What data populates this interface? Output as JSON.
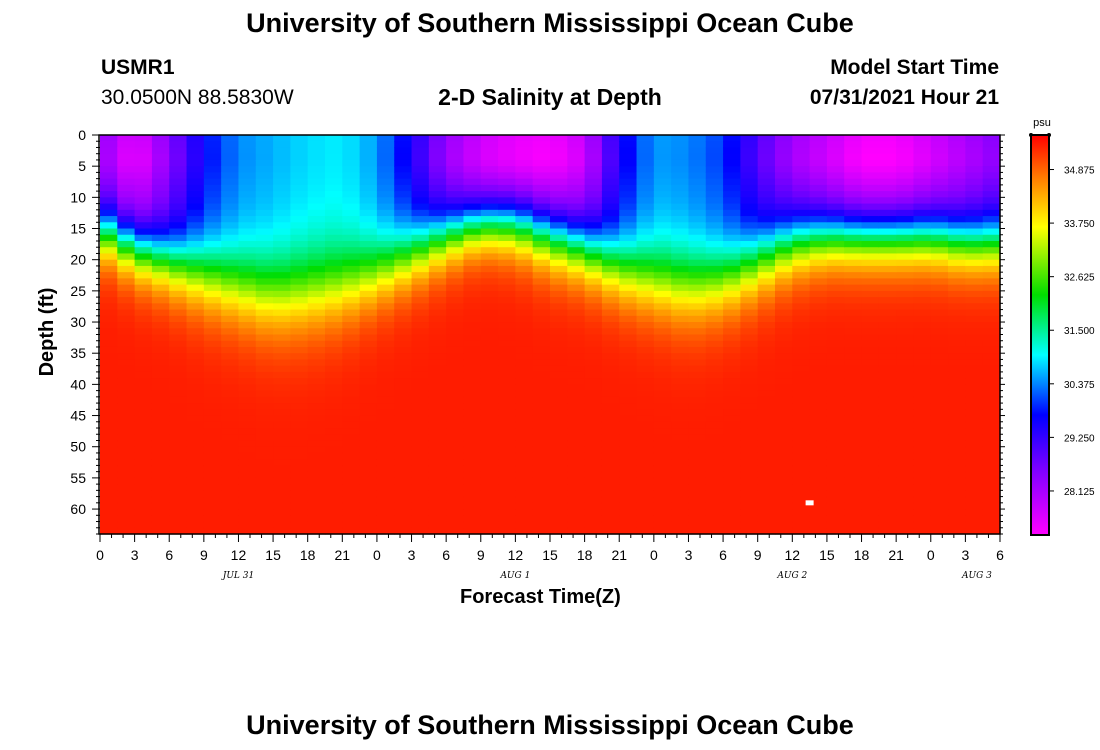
{
  "page": {
    "title_top": "University of Southern Mississippi Ocean Cube",
    "title_bottom": "University of Southern Mississippi Ocean Cube",
    "station_id": "USMR1",
    "station_coords": "30.0500N  88.5830W",
    "model_label": "Model Start Time",
    "model_time": "07/31/2021 Hour 21"
  },
  "chart_data": {
    "type": "heatmap",
    "title": "2-D Salinity at Depth",
    "xlabel": "Forecast Time(Z)",
    "ylabel": "Depth (ft)",
    "x_range_hours": [
      0,
      78
    ],
    "y_range_ft": [
      0,
      64
    ],
    "x_tick_labels": [
      "0",
      "3",
      "6",
      "9",
      "12",
      "15",
      "18",
      "21",
      "0",
      "3",
      "6",
      "9",
      "12",
      "15",
      "18",
      "21",
      "0",
      "3",
      "6",
      "9",
      "12",
      "15",
      "18",
      "21",
      "0",
      "3",
      "6"
    ],
    "y_ticks": [
      0,
      5,
      10,
      15,
      20,
      25,
      30,
      35,
      40,
      45,
      50,
      55,
      60
    ],
    "date_labels": [
      {
        "label": "JUL 31",
        "hour": 12
      },
      {
        "label": "AUG 1",
        "hour": 36
      },
      {
        "label": "AUG 2",
        "hour": 60
      },
      {
        "label": "AUG 3",
        "hour": 76
      }
    ],
    "colorbar": {
      "unit": "psu",
      "min": 27.2,
      "max": 35.6,
      "tick_values": [
        "34.875",
        "33.750",
        "32.625",
        "31.500",
        "30.375",
        "29.250",
        "28.125"
      ]
    },
    "cross_sections": [
      {
        "hour": 0,
        "top_psu": 28.4,
        "depth_mid_ft": 15,
        "width_ft": 11
      },
      {
        "hour": 3,
        "top_psu": 27.5,
        "depth_mid_ft": 18,
        "width_ft": 12
      },
      {
        "hour": 6,
        "top_psu": 28.5,
        "depth_mid_ft": 20,
        "width_ft": 13
      },
      {
        "hour": 9,
        "top_psu": 29.7,
        "depth_mid_ft": 22,
        "width_ft": 15
      },
      {
        "hour": 12,
        "top_psu": 30.4,
        "depth_mid_ft": 24,
        "width_ft": 16
      },
      {
        "hour": 15,
        "top_psu": 30.6,
        "depth_mid_ft": 25.5,
        "width_ft": 17
      },
      {
        "hour": 18,
        "top_psu": 30.8,
        "depth_mid_ft": 25,
        "width_ft": 17
      },
      {
        "hour": 21,
        "top_psu": 30.9,
        "depth_mid_ft": 24,
        "width_ft": 16
      },
      {
        "hour": 24,
        "top_psu": 30.5,
        "depth_mid_ft": 22,
        "width_ft": 14
      },
      {
        "hour": 27,
        "top_psu": 29.5,
        "depth_mid_ft": 19,
        "width_ft": 13
      },
      {
        "hour": 30,
        "top_psu": 28.3,
        "depth_mid_ft": 16,
        "width_ft": 12
      },
      {
        "hour": 33,
        "top_psu": 27.7,
        "depth_mid_ft": 14,
        "width_ft": 11
      },
      {
        "hour": 36,
        "top_psu": 27.4,
        "depth_mid_ft": 14,
        "width_ft": 12
      },
      {
        "hour": 39,
        "top_psu": 27.3,
        "depth_mid_ft": 16,
        "width_ft": 13
      },
      {
        "hour": 42,
        "top_psu": 27.8,
        "depth_mid_ft": 18,
        "width_ft": 13
      },
      {
        "hour": 45,
        "top_psu": 29.5,
        "depth_mid_ft": 21,
        "width_ft": 14
      },
      {
        "hour": 48,
        "top_psu": 30.5,
        "depth_mid_ft": 23,
        "width_ft": 15
      },
      {
        "hour": 51,
        "top_psu": 30.4,
        "depth_mid_ft": 24,
        "width_ft": 16
      },
      {
        "hour": 54,
        "top_psu": 30.0,
        "depth_mid_ft": 23,
        "width_ft": 15
      },
      {
        "hour": 57,
        "top_psu": 29.0,
        "depth_mid_ft": 20,
        "width_ft": 14
      },
      {
        "hour": 60,
        "top_psu": 28.2,
        "depth_mid_ft": 17,
        "width_ft": 13
      },
      {
        "hour": 63,
        "top_psu": 27.8,
        "depth_mid_ft": 16,
        "width_ft": 12
      },
      {
        "hour": 66,
        "top_psu": 27.3,
        "depth_mid_ft": 16,
        "width_ft": 12
      },
      {
        "hour": 69,
        "top_psu": 27.3,
        "depth_mid_ft": 16,
        "width_ft": 12
      },
      {
        "hour": 72,
        "top_psu": 27.7,
        "depth_mid_ft": 16,
        "width_ft": 12
      },
      {
        "hour": 75,
        "top_psu": 28.1,
        "depth_mid_ft": 17,
        "width_ft": 12
      },
      {
        "hour": 78,
        "top_psu": 28.5,
        "depth_mid_ft": 17,
        "width_ft": 12
      }
    ],
    "bottom_psu": 35.4,
    "marker": {
      "hour": 61.5,
      "depth_ft": 59
    }
  }
}
